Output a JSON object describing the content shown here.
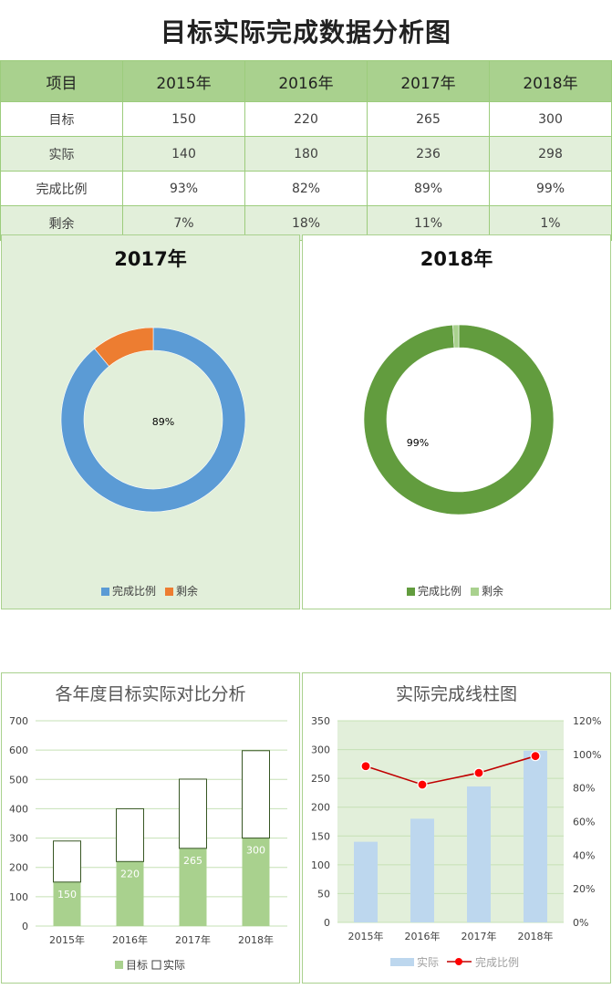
{
  "title": "目标实际完成数据分析图",
  "table": {
    "headers": [
      "项目",
      "2015年",
      "2016年",
      "2017年",
      "2018年"
    ],
    "rows": [
      [
        "目标",
        "150",
        "220",
        "265",
        "300"
      ],
      [
        "实际",
        "140",
        "180",
        "236",
        "298"
      ],
      [
        "完成比例",
        "93%",
        "82%",
        "89%",
        "99%"
      ],
      [
        "剩余",
        "7%",
        "18%",
        "11%",
        "1%"
      ]
    ]
  },
  "donut_2017": {
    "title": "2017年",
    "label": "89%",
    "legend": [
      "完成比例",
      "剩余"
    ],
    "colors": {
      "done": "#5b9bd5",
      "rest": "#ed7d31"
    }
  },
  "donut_2018": {
    "title": "2018年",
    "label": "99%",
    "legend": [
      "完成比例",
      "剩余"
    ],
    "colors": {
      "done": "#629c3e",
      "rest": "#a9d18e"
    }
  },
  "bar_chart": {
    "title": "各年度目标实际对比分析",
    "legend": [
      "目标",
      "实际"
    ],
    "colors": {
      "target": "#a9d18e",
      "actual": "#ffffff",
      "outline": "#375623"
    }
  },
  "combo_chart": {
    "title": "实际完成线柱图",
    "legend": [
      "实际",
      "完成比例"
    ],
    "colors": {
      "bar": "#bdd7ee",
      "line": "#c00000",
      "marker": "#ff0000",
      "plot_bg": "#e2efda"
    }
  },
  "chart_data": [
    {
      "type": "pie",
      "title": "2017年",
      "categories": [
        "完成比例",
        "剩余"
      ],
      "values": [
        0.89,
        0.11
      ],
      "data_labels": [
        "89%"
      ]
    },
    {
      "type": "pie",
      "title": "2018年",
      "categories": [
        "完成比例",
        "剩余"
      ],
      "values": [
        0.99,
        0.01
      ],
      "data_labels": [
        "99%"
      ]
    },
    {
      "type": "bar",
      "stacked": true,
      "title": "各年度目标实际对比分析",
      "categories": [
        "2015年",
        "2016年",
        "2017年",
        "2018年"
      ],
      "series": [
        {
          "name": "目标",
          "values": [
            150,
            220,
            265,
            300
          ]
        },
        {
          "name": "实际",
          "values": [
            140,
            180,
            236,
            298
          ]
        }
      ],
      "ylim": [
        0,
        700
      ],
      "yticks": [
        0,
        100,
        200,
        300,
        400,
        500,
        600,
        700
      ],
      "grid": true,
      "legend": "bottom"
    },
    {
      "type": "bar",
      "title": "实际完成线柱图",
      "categories": [
        "2015年",
        "2016年",
        "2017年",
        "2018年"
      ],
      "series": [
        {
          "name": "实际",
          "type": "bar",
          "axis": "left",
          "values": [
            140,
            180,
            236,
            298
          ]
        },
        {
          "name": "完成比例",
          "type": "line",
          "axis": "right",
          "values": [
            0.93,
            0.82,
            0.89,
            0.99
          ]
        }
      ],
      "ylim": [
        0,
        350
      ],
      "yticks": [
        0,
        50,
        100,
        150,
        200,
        250,
        300,
        350
      ],
      "y2lim": [
        0,
        1.2
      ],
      "y2ticks": [
        "0%",
        "20%",
        "40%",
        "60%",
        "80%",
        "100%",
        "120%"
      ],
      "grid": true,
      "legend": "bottom"
    }
  ]
}
